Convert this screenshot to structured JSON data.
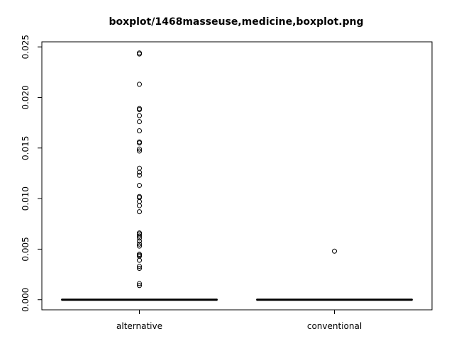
{
  "chart_data": {
    "type": "boxplot",
    "title": "boxplot/1468masseuse,medicine,boxplot.png",
    "xlabel": "",
    "ylabel": "",
    "ylim": [
      -0.001,
      0.0255
    ],
    "y_ticks": [
      0.0,
      0.005,
      0.01,
      0.015,
      0.02,
      0.025
    ],
    "y_tick_labels": [
      "0.000",
      "0.005",
      "0.010",
      "0.015",
      "0.020",
      "0.025"
    ],
    "categories": [
      "alternative",
      "conventional"
    ],
    "grid": false,
    "legend": "none",
    "series": [
      {
        "category": "alternative",
        "min": 0.0,
        "q1": 0.0,
        "median": 0.0,
        "q3": 0.0,
        "max": 0.0,
        "outliers": [
          0.0244,
          0.0243,
          0.0213,
          0.0189,
          0.0188,
          0.0182,
          0.0176,
          0.0167,
          0.0156,
          0.0155,
          0.0149,
          0.0147,
          0.013,
          0.0126,
          0.0123,
          0.0113,
          0.0102,
          0.0101,
          0.0097,
          0.0093,
          0.0087,
          0.0066,
          0.0065,
          0.0063,
          0.0061,
          0.0058,
          0.0055,
          0.0053,
          0.0045,
          0.0044,
          0.0043,
          0.0039,
          0.0033,
          0.0031,
          0.0016,
          0.0014
        ]
      },
      {
        "category": "conventional",
        "min": 0.0,
        "q1": 0.0,
        "median": 0.0,
        "q3": 0.0,
        "max": 0.0,
        "outliers": [
          0.0048
        ]
      }
    ]
  }
}
